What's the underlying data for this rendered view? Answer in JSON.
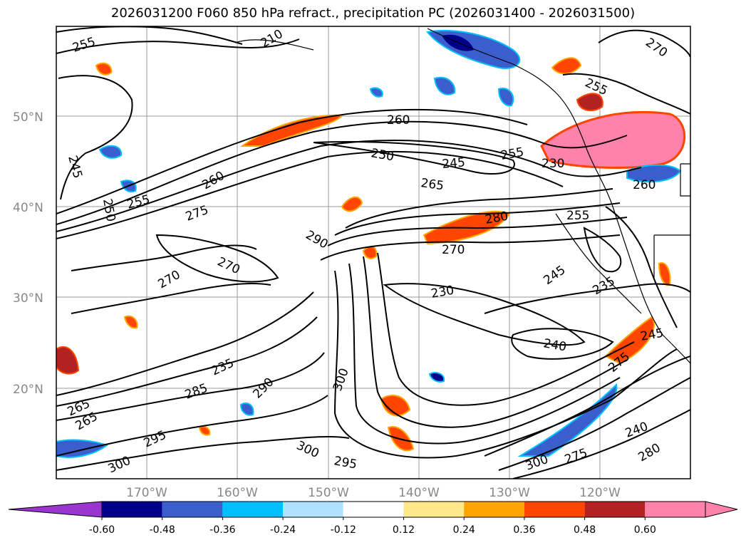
{
  "title": "2026031200 F060 850 hPa refract., precipitation PC (2026031400 - 2026031500)",
  "latitude_labels": [
    "50°N",
    "40°N",
    "30°N",
    "20°N"
  ],
  "longitude_labels": [
    "170°W",
    "160°W",
    "150°W",
    "140°W",
    "130°W",
    "120°W"
  ],
  "contour_labels": [
    "255",
    "260",
    "270",
    "245",
    "250",
    "255",
    "260",
    "275",
    "250",
    "255",
    "245",
    "260",
    "255",
    "265",
    "280",
    "270",
    "290",
    "270",
    "270",
    "245",
    "235",
    "230",
    "240",
    "245",
    "235",
    "285",
    "290",
    "300",
    "265",
    "275",
    "240",
    "280",
    "295",
    "300",
    "295",
    "300",
    "265",
    "275",
    "300",
    "230",
    "210",
    "255",
    "260"
  ],
  "colorbar": {
    "ticks": [
      "-0.60",
      "-0.48",
      "-0.36",
      "-0.24",
      "-0.12",
      "0.12",
      "0.24",
      "0.36",
      "0.48",
      "0.60"
    ],
    "colors": [
      "#9a35d0",
      "#00008b",
      "#3a5fcd",
      "#00bfff",
      "#b0e2ff",
      "#ffffff",
      "#ffe88a",
      "#ffa500",
      "#ff4500",
      "#b22222",
      "#ff82ab",
      "#ff82ab"
    ]
  },
  "colors": {
    "neg_strong": "#00008b",
    "neg_mid": "#3a5fcd",
    "neg_light": "#00bfff",
    "neg_pale": "#b0e2ff",
    "pos_pale": "#ffe88a",
    "pos_mid": "#ffa500",
    "pos_strong": "#ff4500",
    "pos_dark": "#b22222",
    "pos_pink": "#ff82ab"
  }
}
